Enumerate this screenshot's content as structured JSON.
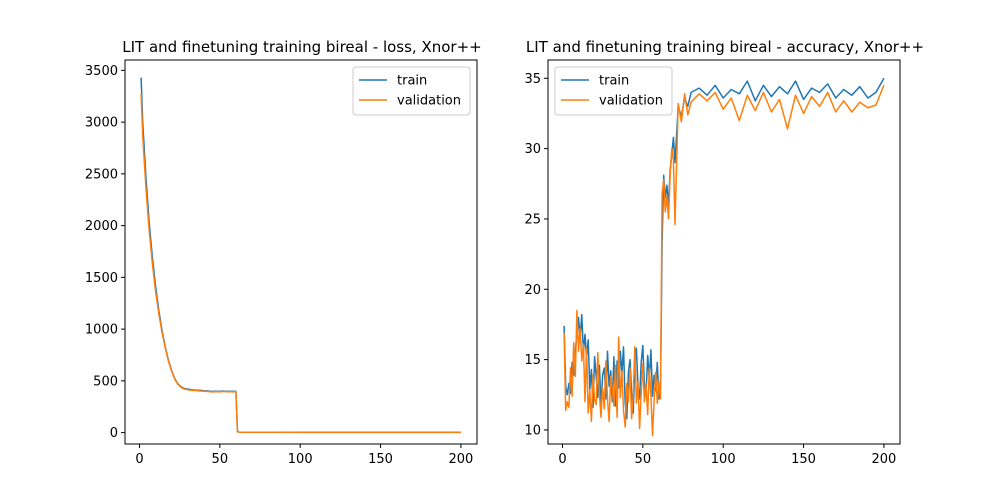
{
  "figure": {
    "background": "#ffffff"
  },
  "colors": {
    "train": "#1f77b4",
    "validation": "#ff7f0e"
  },
  "chart_data": [
    {
      "type": "line",
      "title": "LIT and finetuning training bireal - loss, Xnor++",
      "xlabel": "",
      "ylabel": "",
      "xlim": [
        -9,
        210
      ],
      "ylim": [
        -110,
        3600
      ],
      "xticks": [
        0,
        50,
        100,
        150,
        200
      ],
      "yticks": [
        0,
        500,
        1000,
        1500,
        2000,
        2500,
        3000,
        3500
      ],
      "legend_position": "top-right",
      "grid": false,
      "series": [
        {
          "name": "train",
          "color": "#1f77b4",
          "x": [
            1,
            2,
            4,
            6,
            8,
            10,
            12,
            14,
            16,
            18,
            20,
            22,
            24,
            26,
            28,
            30,
            31,
            32,
            34,
            36,
            38,
            40,
            42,
            44,
            46,
            48,
            50,
            52,
            54,
            56,
            58,
            60,
            61,
            62,
            70,
            80,
            100,
            120,
            140,
            160,
            180,
            200
          ],
          "y": [
            3430,
            3000,
            2470,
            2040,
            1700,
            1420,
            1180,
            990,
            830,
            700,
            600,
            520,
            470,
            440,
            425,
            420,
            418,
            415,
            412,
            410,
            408,
            405,
            403,
            400,
            398,
            400,
            398,
            402,
            398,
            400,
            398,
            400,
            10,
            5,
            4,
            3,
            3,
            3,
            3,
            3,
            3,
            3
          ]
        },
        {
          "name": "validation",
          "color": "#ff7f0e",
          "x": [
            1,
            2,
            4,
            6,
            8,
            10,
            12,
            14,
            16,
            18,
            20,
            22,
            24,
            26,
            28,
            30,
            31,
            32,
            34,
            36,
            38,
            40,
            42,
            44,
            46,
            48,
            50,
            52,
            54,
            56,
            58,
            60,
            61,
            62,
            70,
            80,
            100,
            120,
            140,
            160,
            180,
            200
          ],
          "y": [
            3270,
            2870,
            2370,
            1960,
            1640,
            1370,
            1150,
            970,
            820,
            690,
            595,
            515,
            465,
            435,
            420,
            415,
            412,
            410,
            408,
            405,
            402,
            400,
            398,
            395,
            393,
            396,
            393,
            398,
            394,
            396,
            393,
            396,
            8,
            4,
            3,
            3,
            2,
            2,
            2,
            2,
            2,
            2
          ]
        }
      ]
    },
    {
      "type": "line",
      "title": "LIT and finetuning training bireal - accuracy, Xnor++",
      "xlabel": "",
      "ylabel": "",
      "xlim": [
        -9,
        210
      ],
      "ylim": [
        9,
        36.3
      ],
      "xticks": [
        0,
        50,
        100,
        150,
        200
      ],
      "yticks": [
        10,
        15,
        20,
        25,
        30,
        35
      ],
      "legend_position": "top-left",
      "grid": false,
      "series": [
        {
          "name": "train",
          "color": "#1f77b4",
          "x": [
            1,
            2,
            3,
            4,
            5,
            6,
            7,
            8,
            9,
            10,
            11,
            12,
            13,
            14,
            15,
            16,
            17,
            18,
            19,
            20,
            21,
            22,
            23,
            24,
            25,
            26,
            27,
            28,
            29,
            30,
            31,
            32,
            33,
            34,
            35,
            36,
            37,
            38,
            39,
            40,
            41,
            42,
            43,
            44,
            45,
            46,
            47,
            48,
            49,
            50,
            51,
            52,
            53,
            54,
            55,
            56,
            57,
            58,
            59,
            60,
            61,
            62,
            63,
            64,
            65,
            66,
            67,
            68,
            69,
            70,
            72,
            74,
            76,
            78,
            80,
            85,
            90,
            95,
            100,
            105,
            110,
            115,
            120,
            125,
            130,
            135,
            140,
            145,
            150,
            155,
            160,
            165,
            170,
            175,
            180,
            185,
            190,
            195,
            200
          ],
          "y": [
            17.4,
            13.1,
            12.5,
            13.3,
            12.6,
            14.8,
            13.9,
            15.6,
            16.8,
            18.0,
            16.5,
            18.2,
            15.5,
            16.8,
            15.1,
            16.4,
            12.9,
            14.3,
            11.6,
            15.2,
            13.8,
            12.3,
            14.6,
            11.6,
            13.9,
            14.4,
            12.2,
            15.6,
            13.1,
            14.2,
            12.0,
            15.2,
            11.7,
            14.9,
            13.0,
            15.6,
            14.0,
            15.9,
            11.9,
            10.8,
            14.1,
            15.0,
            12.6,
            11.2,
            14.6,
            15.8,
            13.1,
            12.2,
            14.8,
            16.0,
            13.2,
            12.5,
            15.3,
            13.6,
            15.7,
            12.4,
            13.9,
            12.8,
            14.8,
            12.2,
            13.0,
            23.4,
            28.1,
            26.5,
            27.4,
            26.0,
            28.5,
            29.6,
            30.8,
            29.0,
            33.0,
            32.3,
            33.6,
            33.0,
            34.0,
            34.3,
            33.8,
            34.5,
            33.6,
            34.2,
            33.9,
            34.8,
            33.4,
            34.5,
            33.7,
            34.4,
            33.9,
            34.8,
            33.5,
            34.3,
            34.0,
            34.6,
            33.6,
            34.2,
            33.8,
            34.4,
            33.6,
            34.0,
            35.0
          ]
        },
        {
          "name": "validation",
          "color": "#ff7f0e",
          "x": [
            1,
            2,
            3,
            4,
            5,
            6,
            7,
            8,
            9,
            10,
            11,
            12,
            13,
            14,
            15,
            16,
            17,
            18,
            19,
            20,
            21,
            22,
            23,
            24,
            25,
            26,
            27,
            28,
            29,
            30,
            31,
            32,
            33,
            34,
            35,
            36,
            37,
            38,
            39,
            40,
            41,
            42,
            43,
            44,
            45,
            46,
            47,
            48,
            49,
            50,
            51,
            52,
            53,
            54,
            55,
            56,
            57,
            58,
            59,
            60,
            61,
            62,
            63,
            64,
            65,
            66,
            67,
            68,
            69,
            70,
            72,
            74,
            76,
            78,
            80,
            85,
            90,
            95,
            100,
            105,
            110,
            115,
            120,
            125,
            130,
            135,
            140,
            145,
            150,
            155,
            160,
            165,
            170,
            175,
            180,
            185,
            190,
            195,
            200
          ],
          "y": [
            16.9,
            11.4,
            12.0,
            11.6,
            14.4,
            12.4,
            16.2,
            13.8,
            18.5,
            15.6,
            17.2,
            14.9,
            16.1,
            12.0,
            15.8,
            11.2,
            12.8,
            10.6,
            13.9,
            12.1,
            11.8,
            15.5,
            12.6,
            10.9,
            13.0,
            11.5,
            14.9,
            12.2,
            10.6,
            13.8,
            12.9,
            11.7,
            14.6,
            10.9,
            16.6,
            12.3,
            14.2,
            11.4,
            10.2,
            13.3,
            12.0,
            14.4,
            10.8,
            12.5,
            15.9,
            11.9,
            13.4,
            10.1,
            12.6,
            14.7,
            12.0,
            13.3,
            11.1,
            14.4,
            12.5,
            9.6,
            12.1,
            14.1,
            11.9,
            13.4,
            12.2,
            26.8,
            27.8,
            25.5,
            26.6,
            25.0,
            28.2,
            30.0,
            29.2,
            24.6,
            33.2,
            31.9,
            33.9,
            32.4,
            33.3,
            33.9,
            33.4,
            34.0,
            32.8,
            33.6,
            32.0,
            33.8,
            32.7,
            34.0,
            32.6,
            33.5,
            31.4,
            33.8,
            32.5,
            33.7,
            33.0,
            34.0,
            32.6,
            33.4,
            32.6,
            33.3,
            32.9,
            33.1,
            34.5
          ]
        }
      ]
    }
  ]
}
